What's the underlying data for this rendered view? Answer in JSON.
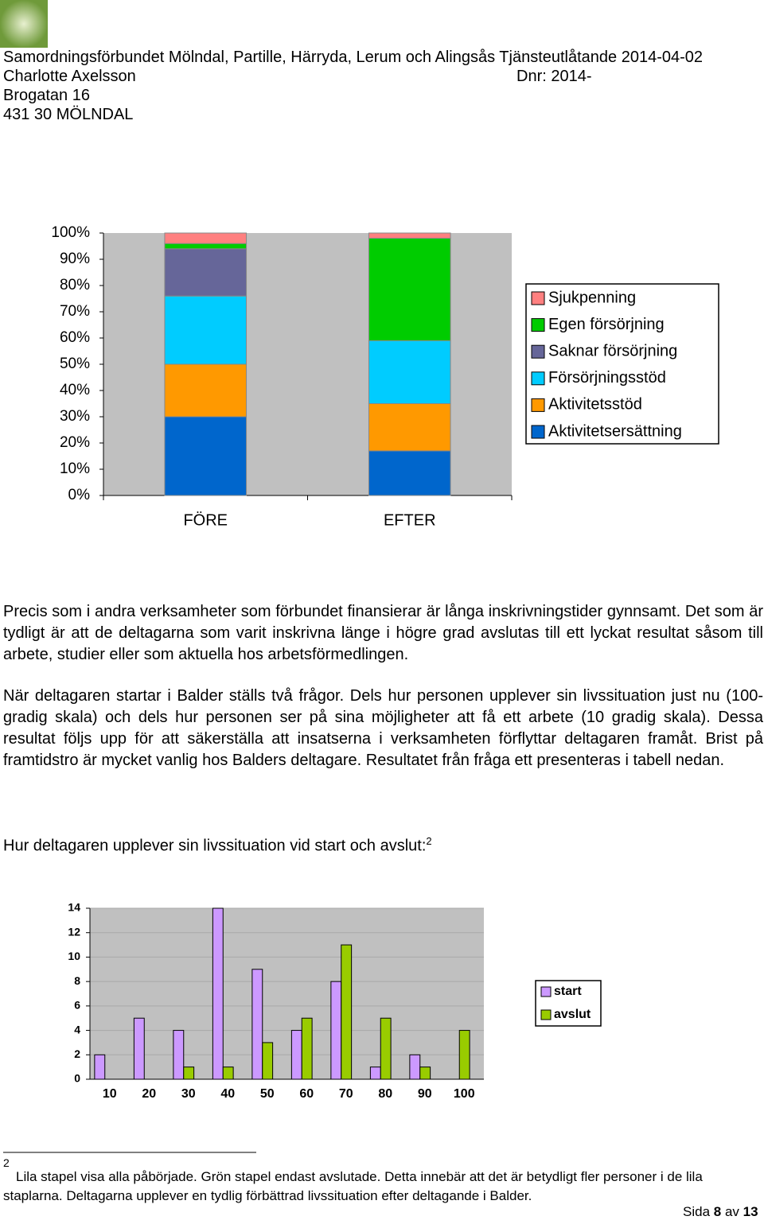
{
  "header": {
    "lines": [
      "Samordningsförbundet Mölndal, Partille, Härryda, Lerum och Alingsås Tjänsteutlåtande 2014-04-02",
      "Charlotte Axelsson",
      "Brogatan 16",
      "431 30 MÖLNDAL"
    ],
    "dnr": "Dnr: 2014-"
  },
  "chart_data": [
    {
      "type": "bar",
      "stacked": true,
      "categories": [
        "FÖRE",
        "EFTER"
      ],
      "series": [
        {
          "name": "Aktivitetsersättning",
          "color": "#0066cc",
          "values": [
            30,
            17
          ]
        },
        {
          "name": "Aktivitetsstöd",
          "color": "#ff9900",
          "values": [
            20,
            18
          ]
        },
        {
          "name": "Försörjningsstöd",
          "color": "#00ccff",
          "values": [
            26,
            24
          ]
        },
        {
          "name": "Saknar försörjning",
          "color": "#666699",
          "values": [
            18,
            0
          ]
        },
        {
          "name": "Egen försörjning",
          "color": "#00cc00",
          "values": [
            2,
            39
          ]
        },
        {
          "name": "Sjukpenning",
          "color": "#ff8080",
          "values": [
            4,
            2
          ]
        }
      ],
      "ylim": [
        0,
        100
      ],
      "yticks": [
        {
          "value": 0,
          "label": "0%"
        },
        {
          "value": 10,
          "label": "10%"
        },
        {
          "value": 20,
          "label": "20%"
        },
        {
          "value": 30,
          "label": "30%"
        },
        {
          "value": 40,
          "label": "40%"
        },
        {
          "value": 50,
          "label": "50%"
        },
        {
          "value": 60,
          "label": "60%"
        },
        {
          "value": 70,
          "label": "70%"
        },
        {
          "value": 80,
          "label": "80%"
        },
        {
          "value": 90,
          "label": "90%"
        },
        {
          "value": 100,
          "label": "100%"
        }
      ],
      "grid": false
    },
    {
      "type": "bar",
      "stacked": false,
      "categories": [
        "10",
        "20",
        "30",
        "40",
        "50",
        "60",
        "70",
        "80",
        "90",
        "100"
      ],
      "series": [
        {
          "name": "start",
          "color": "#cc99ff",
          "values": [
            2,
            5,
            4,
            14,
            9,
            4,
            8,
            1,
            2,
            0
          ]
        },
        {
          "name": "avslut",
          "color": "#99cc00",
          "values": [
            0,
            0,
            1,
            1,
            3,
            5,
            11,
            5,
            1,
            4
          ]
        }
      ],
      "ylim": [
        0,
        14
      ],
      "yticks": [
        0,
        2,
        4,
        6,
        8,
        10,
        12,
        14
      ],
      "grid": true
    }
  ],
  "paragraphs": [
    "Precis som i andra verksamheter som förbundet finansierar är långa inskrivningstider gynnsamt. Det som är tydligt är att de deltagarna som varit inskrivna länge i högre grad avslutas till ett lyckat resultat såsom till arbete, studier eller som aktuella hos arbetsförmedlingen.",
    "När deltagaren startar i Balder ställs två frågor. Dels hur personen upplever sin livssituation just nu (100-gradig skala) och dels hur personen ser på sina möjligheter att få ett arbete (10 gradig skala). Dessa resultat följs upp för att säkerställa att insatserna i verksamheten förflyttar deltagaren framåt. Brist på framtidstro är mycket vanlig hos Balders deltagare.  Resultatet från fråga ett presenteras i tabell nedan."
  ],
  "heading": {
    "text": "Hur deltagaren upplever sin livssituation vid start och avslut:",
    "note": "2"
  },
  "footnote": {
    "marker": "2",
    "text": "Lila stapel visa alla påbörjade. Grön stapel endast avslutade. Detta innebär att det är betydligt fler personer i de lila staplarna. Deltagarna upplever en tydlig förbättrad livssituation efter deltagande i Balder."
  },
  "footer": {
    "prefix": "Sida",
    "page": "8",
    "of": "av",
    "total": "13"
  }
}
